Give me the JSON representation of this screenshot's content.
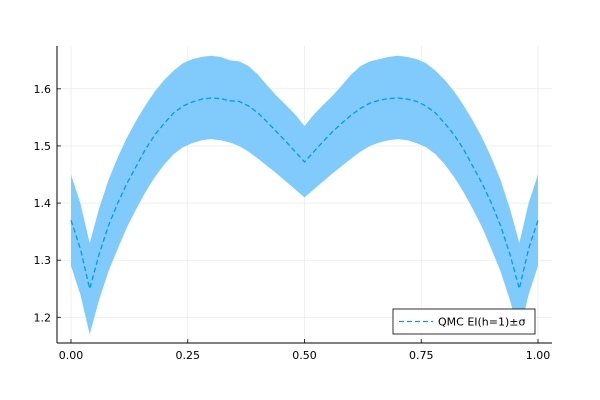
{
  "chart_data": {
    "type": "line",
    "xlim": [
      -0.03,
      1.03
    ],
    "ylim": [
      1.155,
      1.675
    ],
    "grid": true,
    "legend_position": "bottom-right",
    "x_ticks": [
      {
        "value": 0.0,
        "label": "0.00"
      },
      {
        "value": 0.25,
        "label": "0.25"
      },
      {
        "value": 0.5,
        "label": "0.50"
      },
      {
        "value": 0.75,
        "label": "0.75"
      },
      {
        "value": 1.0,
        "label": "1.00"
      }
    ],
    "y_ticks": [
      {
        "value": 1.2,
        "label": "1.2"
      },
      {
        "value": 1.3,
        "label": "1.3"
      },
      {
        "value": 1.4,
        "label": "1.4"
      },
      {
        "value": 1.5,
        "label": "1.5"
      },
      {
        "value": 1.6,
        "label": "1.6"
      }
    ],
    "series": [
      {
        "name": "QMC EI(h=1)±σ",
        "color": "#009AFA",
        "band_color": "#80CBFC",
        "x": [
          0.0,
          0.02,
          0.04,
          0.06,
          0.08,
          0.1,
          0.12,
          0.14,
          0.16,
          0.18,
          0.2,
          0.22,
          0.24,
          0.26,
          0.28,
          0.3,
          0.32,
          0.34,
          0.36,
          0.38,
          0.4,
          0.42,
          0.44,
          0.46,
          0.48,
          0.5,
          0.52,
          0.54,
          0.56,
          0.58,
          0.6,
          0.62,
          0.64,
          0.66,
          0.68,
          0.7,
          0.72,
          0.74,
          0.76,
          0.78,
          0.8,
          0.82,
          0.84,
          0.86,
          0.88,
          0.9,
          0.92,
          0.94,
          0.96,
          0.98,
          1.0
        ],
        "y": [
          1.37,
          1.32,
          1.25,
          1.31,
          1.36,
          1.4,
          1.435,
          1.465,
          1.495,
          1.52,
          1.54,
          1.558,
          1.57,
          1.577,
          1.582,
          1.584,
          1.583,
          1.579,
          1.578,
          1.57,
          1.558,
          1.542,
          1.525,
          1.508,
          1.49,
          1.472,
          1.49,
          1.508,
          1.525,
          1.54,
          1.554,
          1.566,
          1.575,
          1.58,
          1.583,
          1.584,
          1.582,
          1.578,
          1.57,
          1.558,
          1.54,
          1.52,
          1.495,
          1.465,
          1.435,
          1.4,
          1.36,
          1.31,
          1.25,
          1.32,
          1.37
        ],
        "lower": [
          1.29,
          1.24,
          1.17,
          1.23,
          1.28,
          1.32,
          1.358,
          1.39,
          1.42,
          1.446,
          1.468,
          1.486,
          1.498,
          1.505,
          1.51,
          1.512,
          1.51,
          1.506,
          1.5,
          1.49,
          1.478,
          1.465,
          1.452,
          1.438,
          1.424,
          1.41,
          1.424,
          1.438,
          1.452,
          1.465,
          1.478,
          1.49,
          1.5,
          1.506,
          1.51,
          1.512,
          1.51,
          1.505,
          1.498,
          1.486,
          1.468,
          1.446,
          1.42,
          1.39,
          1.358,
          1.32,
          1.28,
          1.23,
          1.17,
          1.24,
          1.29
        ],
        "upper": [
          1.45,
          1.4,
          1.33,
          1.39,
          1.44,
          1.48,
          1.515,
          1.545,
          1.572,
          1.596,
          1.616,
          1.632,
          1.645,
          1.652,
          1.656,
          1.658,
          1.656,
          1.65,
          1.648,
          1.64,
          1.625,
          1.606,
          1.588,
          1.572,
          1.555,
          1.535,
          1.555,
          1.572,
          1.588,
          1.606,
          1.625,
          1.64,
          1.648,
          1.652,
          1.656,
          1.658,
          1.656,
          1.652,
          1.645,
          1.632,
          1.616,
          1.596,
          1.572,
          1.545,
          1.515,
          1.48,
          1.44,
          1.39,
          1.33,
          1.4,
          1.45
        ]
      }
    ]
  }
}
